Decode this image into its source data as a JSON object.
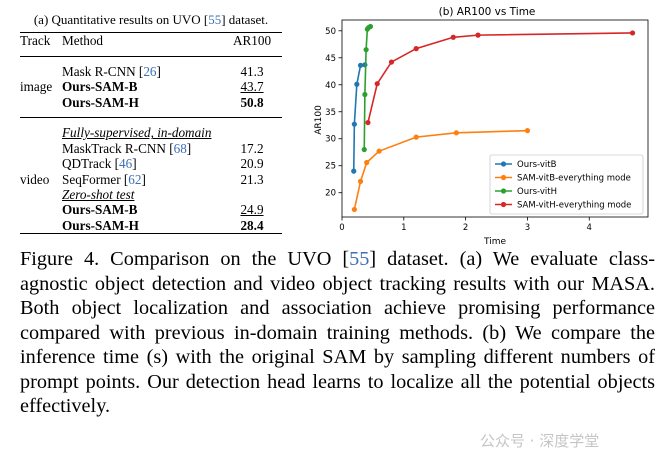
{
  "table": {
    "caption": "(a) Quantitative results on UVO [55] dataset.",
    "caption_parts": {
      "pre": "(a) Quantitative results on UVO [",
      "cite": "55",
      "post": "] dataset."
    },
    "headers": {
      "track": "Track",
      "method": "Method",
      "ar": "AR100"
    },
    "image_group": {
      "track": "image",
      "rows": [
        {
          "pre": "Mask R-CNN [",
          "cite": "26",
          "post": "]",
          "ar": "41.3",
          "bold": false,
          "underline": false
        },
        {
          "pre": "Ours-SAM-B",
          "cite": "",
          "post": "",
          "ar": "43.7",
          "bold": true,
          "underline": true
        },
        {
          "pre": "Ours-SAM-H",
          "cite": "",
          "post": "",
          "ar": "50.8",
          "bold": true,
          "underline": false
        }
      ]
    },
    "video_group": {
      "track": "video",
      "section1": "Fully-supervised, in-domain",
      "rows1": [
        {
          "pre": "MaskTrack R-CNN [",
          "cite": "68",
          "post": "]",
          "ar": "17.2"
        },
        {
          "pre": "QDTrack [",
          "cite": "46",
          "post": "]",
          "ar": "20.9"
        },
        {
          "pre": "SeqFormer [",
          "cite": "62",
          "post": "]",
          "ar": "21.3"
        }
      ],
      "section2": "Zero-shot test",
      "rows2": [
        {
          "pre": "Ours-SAM-B",
          "ar": "24.9",
          "underline": true
        },
        {
          "pre": "Ours-SAM-H",
          "ar": "28.4",
          "underline": false
        }
      ]
    }
  },
  "chart_data": {
    "type": "line",
    "title": "(b) AR100 vs Time",
    "xlabel": "Time",
    "ylabel": "AR100",
    "xlim": [
      0,
      4.95
    ],
    "ylim": [
      15.5,
      52
    ],
    "xticks": [
      0,
      1,
      2,
      3,
      4
    ],
    "yticks": [
      20,
      25,
      30,
      35,
      40,
      45,
      50
    ],
    "grid": false,
    "legend_position": "lower-right",
    "series": [
      {
        "name": "Ours-vitB",
        "color": "#1f77b4",
        "x": [
          0.19,
          0.2,
          0.24,
          0.3,
          0.37
        ],
        "y": [
          24.0,
          32.7,
          40.1,
          43.6,
          43.7
        ]
      },
      {
        "name": "SAM-vitB-everything mode",
        "color": "#ff7f0e",
        "x": [
          0.2,
          0.3,
          0.4,
          0.6,
          1.2,
          1.85,
          3.0
        ],
        "y": [
          16.9,
          22.1,
          25.6,
          27.7,
          30.3,
          31.1,
          31.5
        ]
      },
      {
        "name": "Ours-vitH",
        "color": "#2ca02c",
        "x": [
          0.36,
          0.37,
          0.39,
          0.41,
          0.43,
          0.46
        ],
        "y": [
          28.0,
          38.2,
          46.5,
          50.3,
          50.6,
          50.8
        ]
      },
      {
        "name": "SAM-vitH-everything mode",
        "color": "#d62728",
        "x": [
          0.42,
          0.57,
          0.8,
          1.2,
          1.8,
          2.2,
          4.7
        ],
        "y": [
          33.0,
          40.2,
          44.2,
          46.7,
          48.8,
          49.2,
          49.6
        ]
      }
    ]
  },
  "caption": {
    "seg1": "Figure 4. Comparison on the UVO [",
    "cite": "55",
    "seg2": "] dataset. (a) We evaluate class-agnostic object detection and video object tracking results with our MASA. Both object localization and association achieve promising performance compared with previous in-domain training methods. (b) We compare the inference time (s) with the original SAM by sampling different numbers of prompt points. Our detection head learns to localize all the potential objects effectively."
  },
  "watermark": "公众号 · 深度学堂"
}
